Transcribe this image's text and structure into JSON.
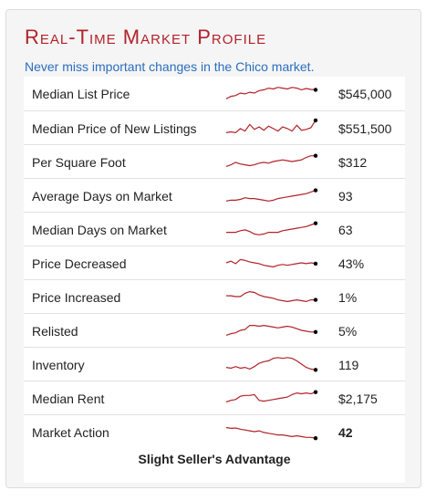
{
  "header": {
    "title": "Real-Time Market Profile",
    "subtitle": "Never miss important changes in the Chico market."
  },
  "colors": {
    "title": "#b2222a",
    "subtitle": "#2a6ebd",
    "sparkline": "#b2222a",
    "endpoint": "#000000"
  },
  "rows": [
    {
      "label": "Median List Price",
      "value": "$545,000",
      "trend": [
        0.15,
        0.3,
        0.35,
        0.5,
        0.45,
        0.55,
        0.5,
        0.65,
        0.7,
        0.8,
        0.75,
        0.85,
        0.8,
        0.75,
        0.85,
        0.8,
        0.7,
        0.78,
        0.72,
        0.7
      ]
    },
    {
      "label": "Median Price of New Listings",
      "value": "$551,500",
      "trend": [
        0.2,
        0.25,
        0.2,
        0.45,
        0.3,
        0.7,
        0.4,
        0.55,
        0.35,
        0.6,
        0.45,
        0.3,
        0.55,
        0.45,
        0.3,
        0.65,
        0.35,
        0.4,
        0.5,
        0.95
      ]
    },
    {
      "label": "Per Square Foot",
      "value": "$312",
      "trend": [
        0.2,
        0.3,
        0.45,
        0.35,
        0.3,
        0.25,
        0.3,
        0.4,
        0.45,
        0.4,
        0.5,
        0.55,
        0.6,
        0.55,
        0.5,
        0.55,
        0.6,
        0.75,
        0.85,
        0.85
      ]
    },
    {
      "label": "Average Days on Market",
      "value": "93",
      "trend": [
        0.15,
        0.2,
        0.2,
        0.25,
        0.35,
        0.3,
        0.3,
        0.25,
        0.2,
        0.15,
        0.2,
        0.3,
        0.35,
        0.4,
        0.45,
        0.5,
        0.55,
        0.6,
        0.7,
        0.8
      ]
    },
    {
      "label": "Median Days on Market",
      "value": "63",
      "trend": [
        0.3,
        0.3,
        0.3,
        0.4,
        0.45,
        0.35,
        0.2,
        0.15,
        0.2,
        0.3,
        0.3,
        0.3,
        0.4,
        0.45,
        0.5,
        0.55,
        0.6,
        0.65,
        0.75,
        0.85
      ]
    },
    {
      "label": "Price Decreased",
      "value": "43%",
      "trend": [
        0.5,
        0.6,
        0.45,
        0.7,
        0.65,
        0.55,
        0.5,
        0.45,
        0.35,
        0.3,
        0.25,
        0.35,
        0.4,
        0.35,
        0.4,
        0.45,
        0.5,
        0.45,
        0.5,
        0.45
      ]
    },
    {
      "label": "Price Increased",
      "value": "1%",
      "trend": [
        0.55,
        0.55,
        0.5,
        0.5,
        0.7,
        0.8,
        0.75,
        0.6,
        0.5,
        0.45,
        0.4,
        0.3,
        0.25,
        0.2,
        0.25,
        0.3,
        0.25,
        0.2,
        0.3,
        0.3
      ]
    },
    {
      "label": "Relisted",
      "value": "5%",
      "trend": [
        0.2,
        0.3,
        0.35,
        0.5,
        0.55,
        0.8,
        0.8,
        0.75,
        0.8,
        0.75,
        0.7,
        0.65,
        0.7,
        0.75,
        0.7,
        0.6,
        0.5,
        0.45,
        0.4,
        0.4
      ]
    },
    {
      "label": "Inventory",
      "value": "119",
      "trend": [
        0.3,
        0.25,
        0.35,
        0.25,
        0.3,
        0.2,
        0.35,
        0.55,
        0.65,
        0.7,
        0.85,
        0.9,
        0.85,
        0.9,
        0.85,
        0.7,
        0.5,
        0.3,
        0.2,
        0.15
      ]
    },
    {
      "label": "Median Rent",
      "value": "$2,175",
      "trend": [
        0.25,
        0.35,
        0.4,
        0.6,
        0.65,
        0.65,
        0.7,
        0.35,
        0.3,
        0.35,
        0.4,
        0.45,
        0.5,
        0.55,
        0.7,
        0.8,
        0.75,
        0.8,
        0.75,
        0.85
      ]
    },
    {
      "label": "Market Action",
      "value": "42",
      "bold": true,
      "trend": [
        0.75,
        0.7,
        0.72,
        0.65,
        0.6,
        0.55,
        0.5,
        0.55,
        0.45,
        0.4,
        0.35,
        0.3,
        0.3,
        0.25,
        0.2,
        0.25,
        0.2,
        0.15,
        0.15,
        0.1
      ]
    }
  ],
  "footer": "Slight Seller's Advantage"
}
